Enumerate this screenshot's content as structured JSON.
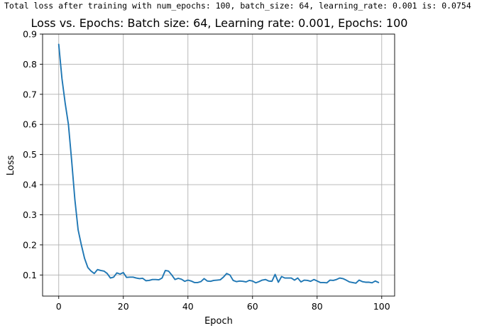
{
  "console_output": "Total loss after training with num_epochs: 100, batch_size: 64, learning_rate: 0.001 is: 0.0754",
  "colors": {
    "series": "#1f77b4",
    "grid": "#b0b0b0",
    "axes": "#000000"
  },
  "chart_data": {
    "type": "line",
    "title": "Loss vs. Epochs: Batch size: 64, Learning rate: 0.001, Epochs: 100",
    "xlabel": "Epoch",
    "ylabel": "Loss",
    "xlim": [
      -5,
      104
    ],
    "ylim": [
      0.03,
      0.9
    ],
    "xticks": [
      0,
      20,
      40,
      60,
      80,
      100
    ],
    "yticks": [
      0.1,
      0.2,
      0.3,
      0.4,
      0.5,
      0.6,
      0.7,
      0.8,
      0.9
    ],
    "xtick_labels": [
      "0",
      "20",
      "40",
      "60",
      "80",
      "100"
    ],
    "ytick_labels": [
      "0.1",
      "0.2",
      "0.3",
      "0.4",
      "0.5",
      "0.6",
      "0.7",
      "0.8",
      "0.9"
    ],
    "grid": true,
    "legend": "none",
    "series": [
      {
        "color": "#1f77b4",
        "x": [
          0,
          1,
          2,
          3,
          4,
          5,
          6,
          7,
          8,
          9,
          10,
          11,
          12,
          13,
          14,
          15,
          16,
          17,
          18,
          19,
          20,
          21,
          22,
          23,
          24,
          25,
          26,
          27,
          28,
          29,
          30,
          31,
          32,
          33,
          34,
          35,
          36,
          37,
          38,
          39,
          40,
          41,
          42,
          43,
          44,
          45,
          46,
          47,
          48,
          49,
          50,
          51,
          52,
          53,
          54,
          55,
          56,
          57,
          58,
          59,
          60,
          61,
          62,
          63,
          64,
          65,
          66,
          67,
          68,
          69,
          70,
          71,
          72,
          73,
          74,
          75,
          76,
          77,
          78,
          79,
          80,
          81,
          82,
          83,
          84,
          85,
          86,
          87,
          88,
          89,
          90,
          91,
          92,
          93,
          94,
          95,
          96,
          97,
          98,
          99
        ],
        "y": [
          0.866,
          0.752,
          0.67,
          0.6,
          0.48,
          0.35,
          0.25,
          0.2,
          0.155,
          0.125,
          0.113,
          0.105,
          0.118,
          0.115,
          0.113,
          0.105,
          0.09,
          0.093,
          0.107,
          0.103,
          0.108,
          0.092,
          0.093,
          0.093,
          0.09,
          0.088,
          0.089,
          0.081,
          0.082,
          0.085,
          0.085,
          0.084,
          0.09,
          0.115,
          0.113,
          0.1,
          0.085,
          0.089,
          0.086,
          0.079,
          0.083,
          0.08,
          0.075,
          0.075,
          0.078,
          0.088,
          0.08,
          0.079,
          0.082,
          0.083,
          0.084,
          0.093,
          0.105,
          0.1,
          0.082,
          0.078,
          0.08,
          0.079,
          0.077,
          0.082,
          0.08,
          0.074,
          0.078,
          0.083,
          0.085,
          0.08,
          0.079,
          0.102,
          0.076,
          0.095,
          0.09,
          0.09,
          0.09,
          0.083,
          0.09,
          0.077,
          0.083,
          0.082,
          0.079,
          0.085,
          0.08,
          0.075,
          0.075,
          0.074,
          0.083,
          0.082,
          0.085,
          0.09,
          0.088,
          0.083,
          0.077,
          0.075,
          0.073,
          0.083,
          0.078,
          0.076,
          0.076,
          0.074,
          0.08,
          0.075
        ]
      }
    ]
  }
}
